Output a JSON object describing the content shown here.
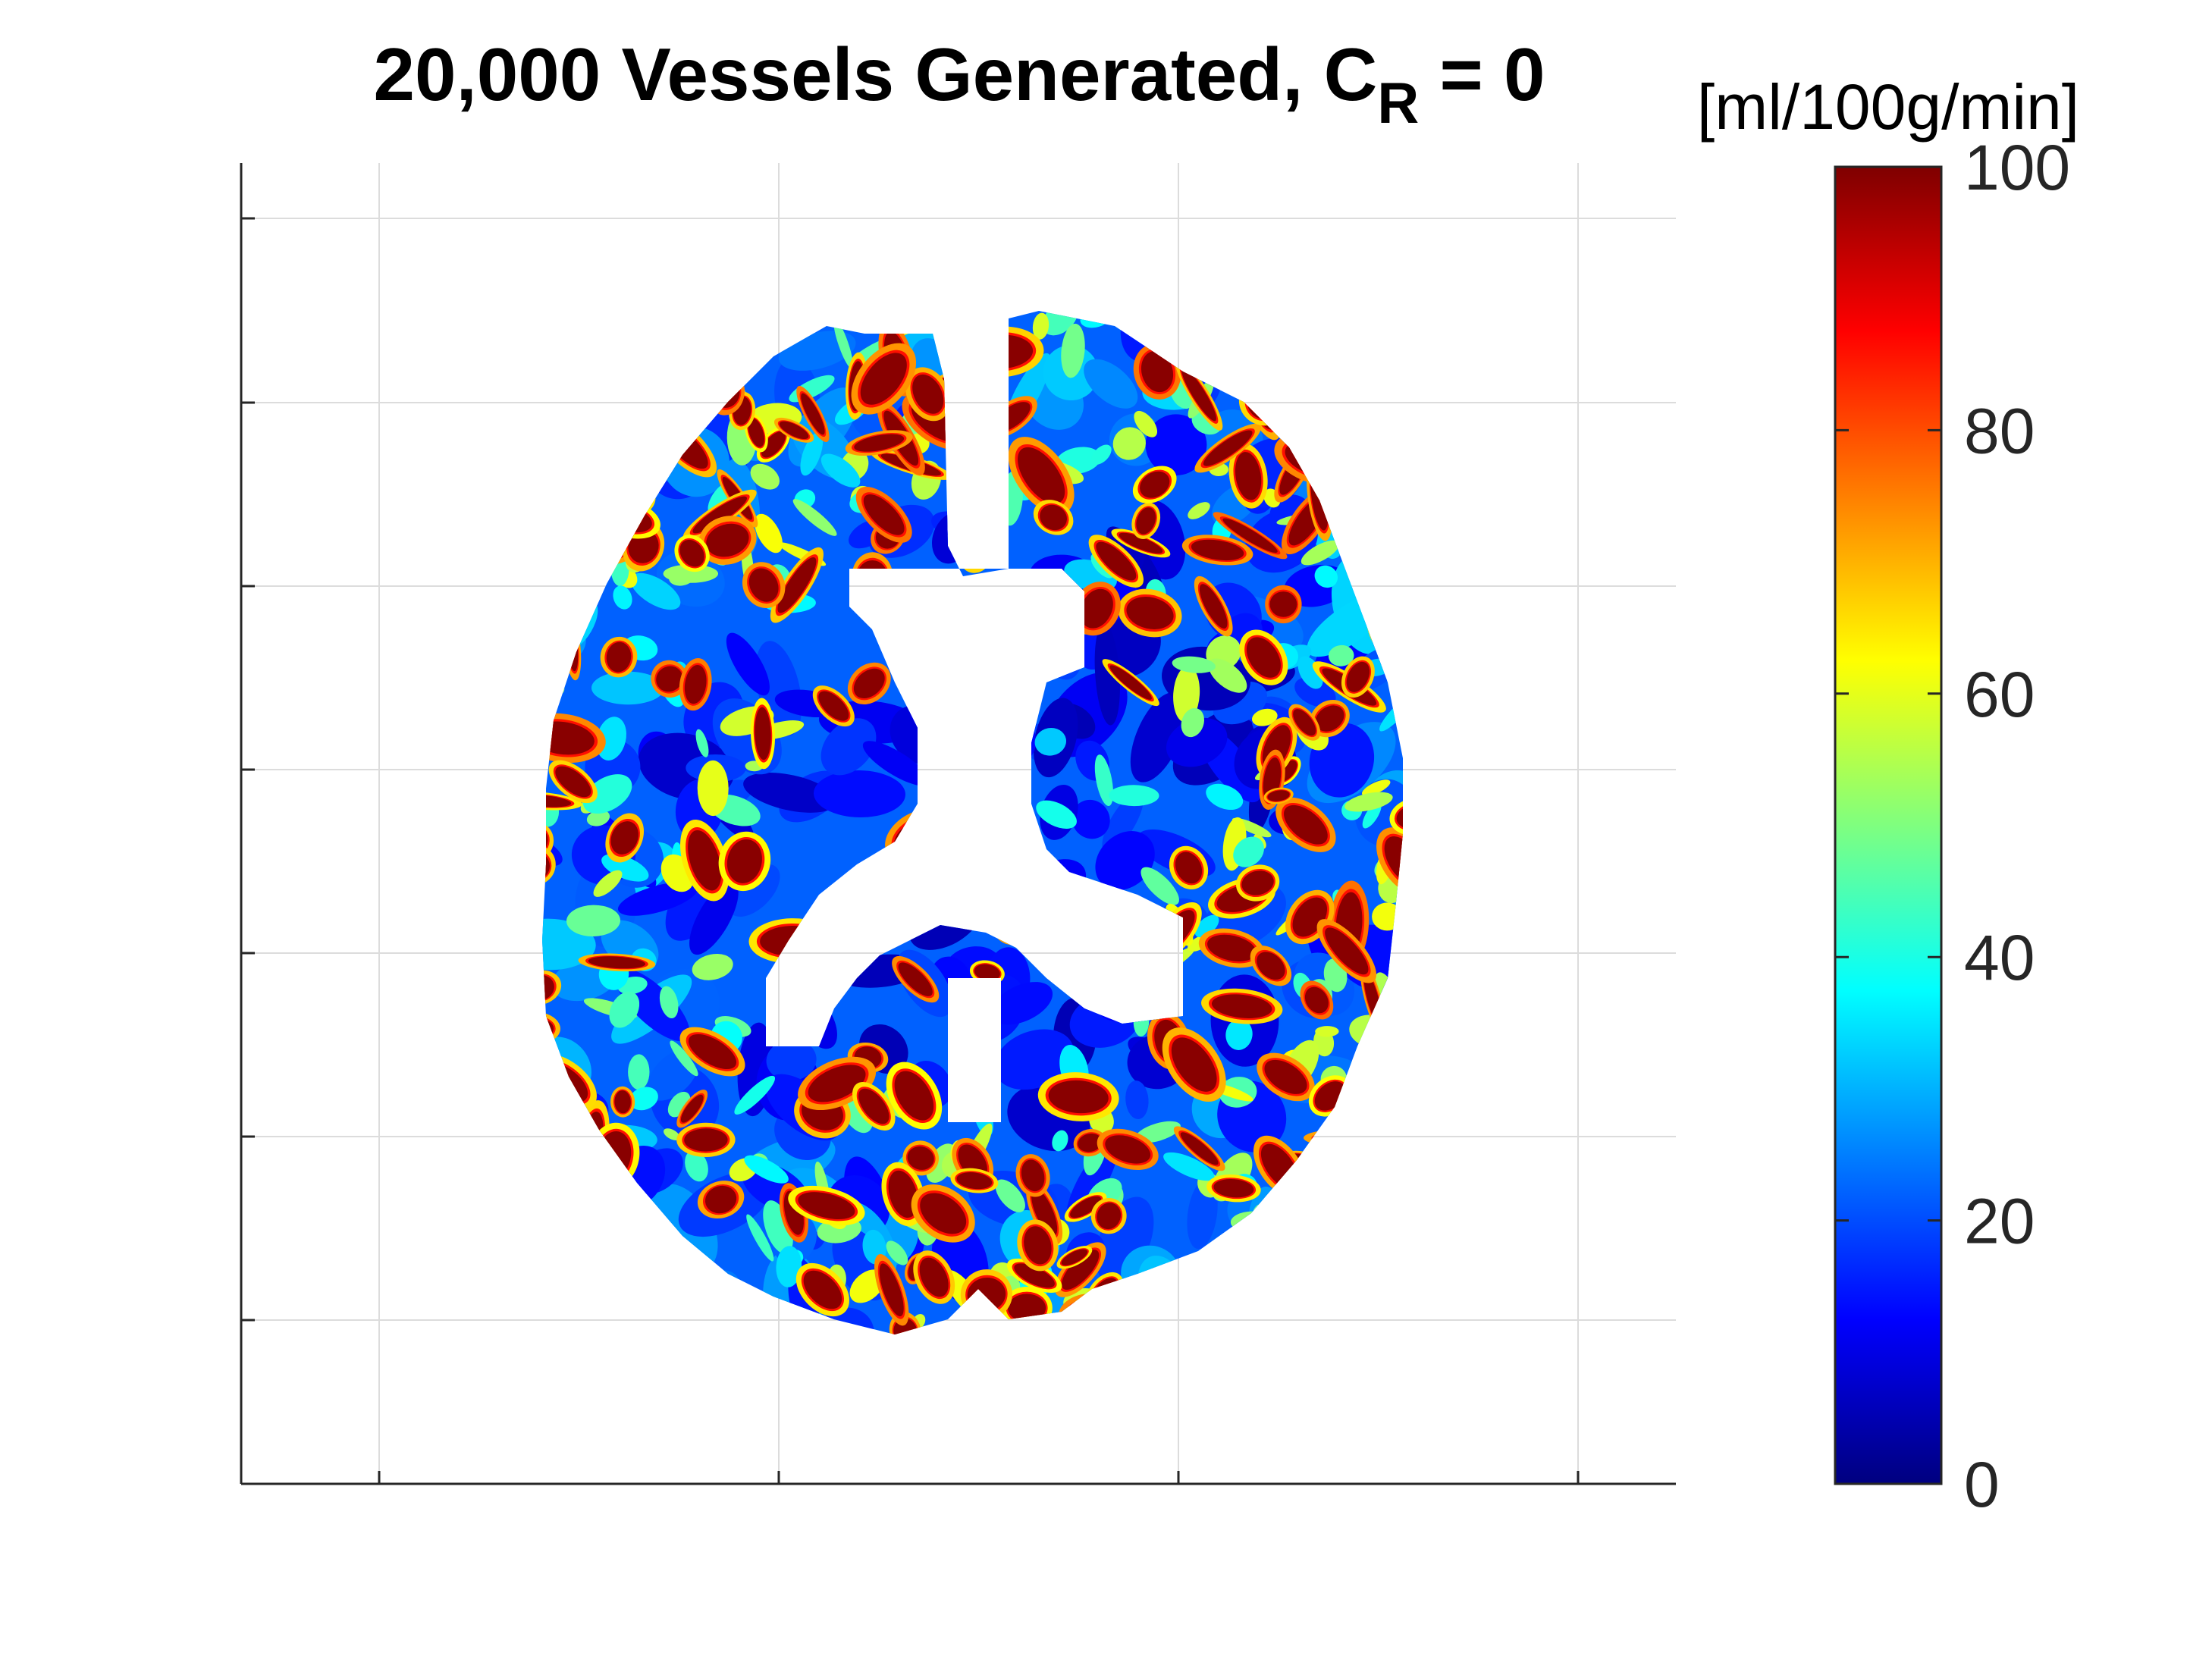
{
  "chart_data": {
    "type": "heatmap",
    "title": {
      "main": "20,000 Vessels Generated, C",
      "subscript": "R",
      "suffix": " = 0"
    },
    "xlabel": "",
    "ylabel": "",
    "grid": true,
    "x_tick_labels_shown": false,
    "y_tick_labels_shown": false,
    "colormap": "jet",
    "colorbar": {
      "units": "[ml/100g/min]",
      "range": [
        0,
        100
      ],
      "ticks": [
        0,
        20,
        40,
        60,
        80,
        100
      ],
      "stops": [
        "#00007f",
        "#0000ff",
        "#007fff",
        "#00ffff",
        "#7fff7f",
        "#ffff00",
        "#ff7f00",
        "#ff0000",
        "#7f0000"
      ]
    },
    "image_description": "perfusion map of an axial brain slice"
  }
}
